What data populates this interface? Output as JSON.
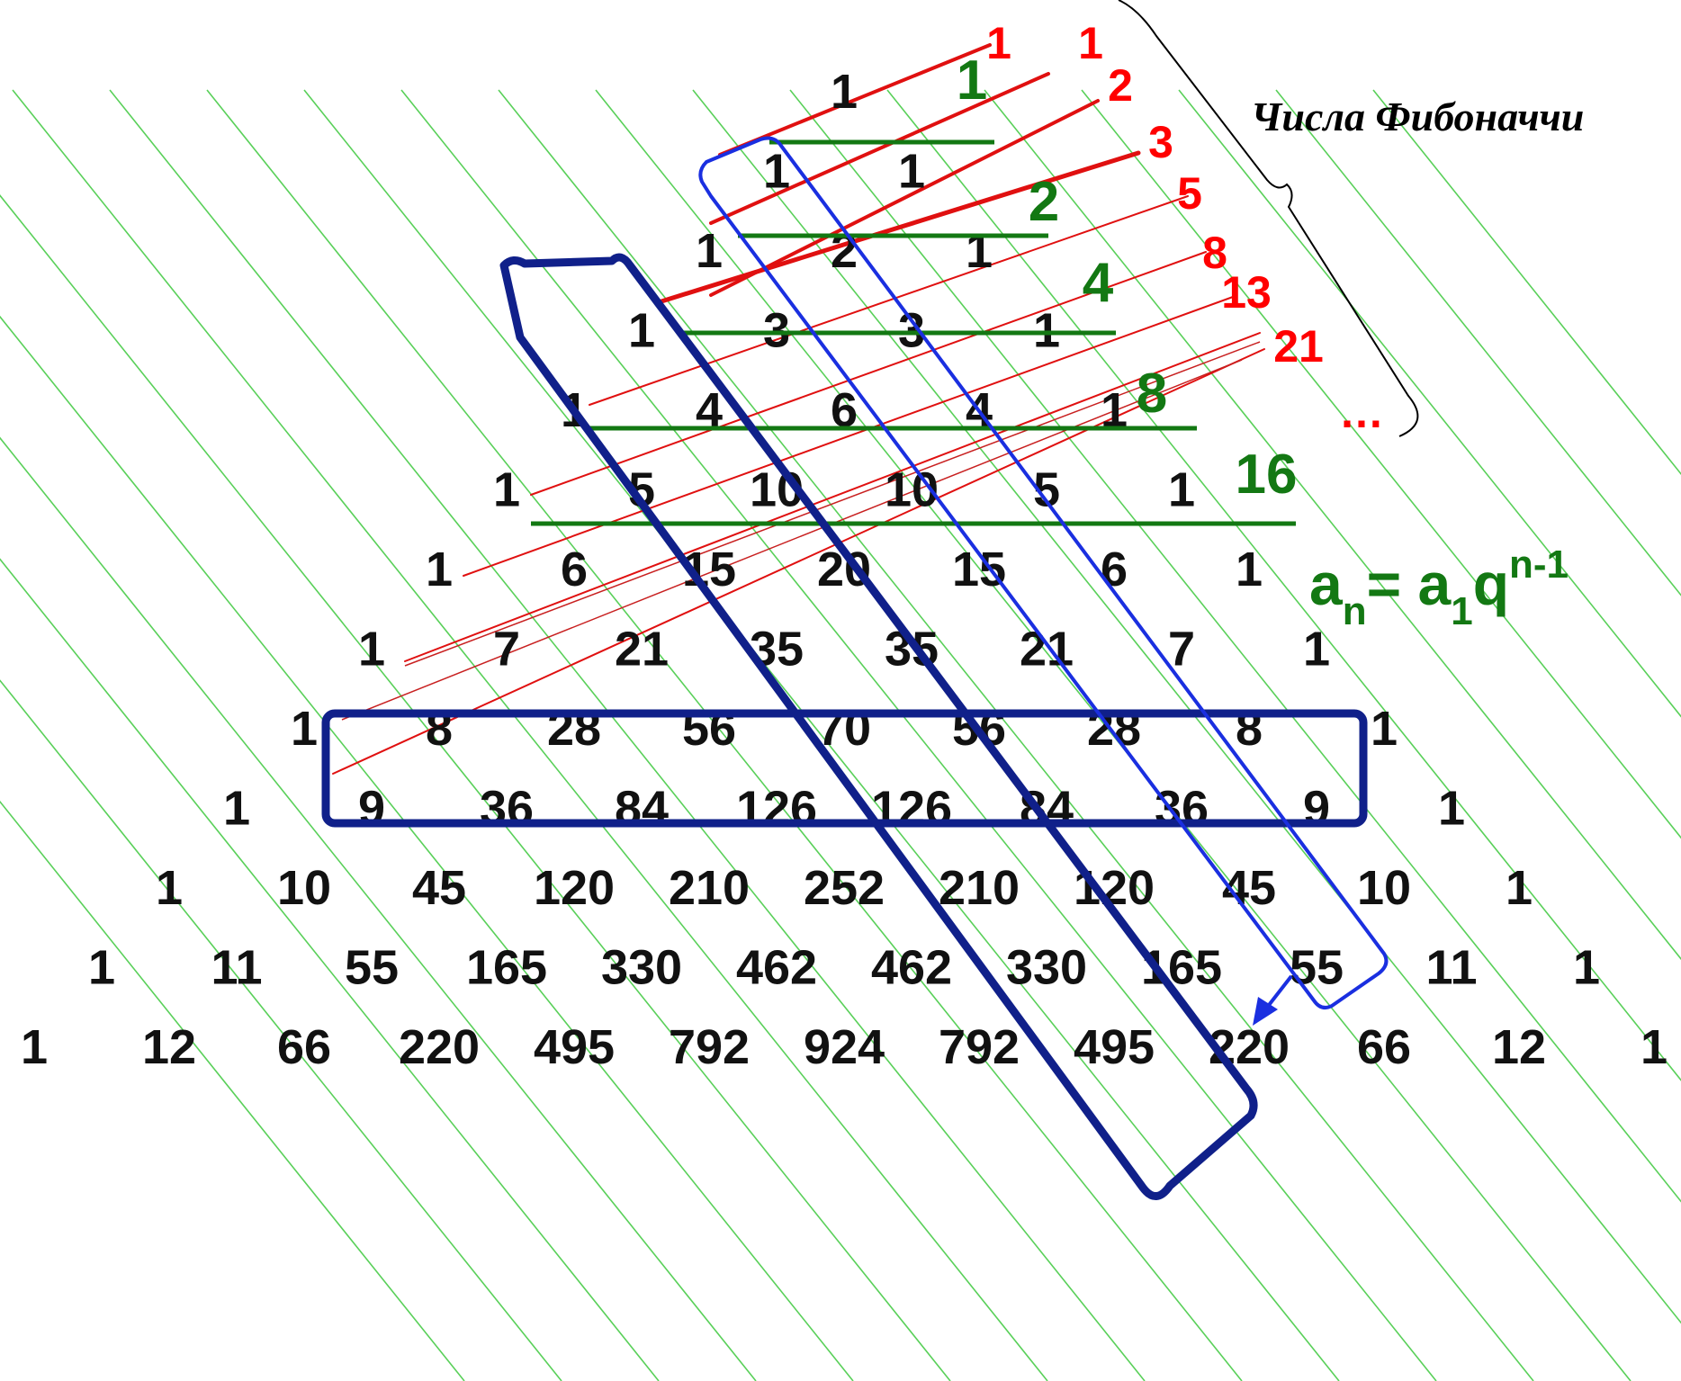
{
  "title": "Числа Фибоначчи",
  "formula": {
    "a": "a",
    "n": "n",
    "eq": "= a",
    "one": "1",
    "q": "q",
    "exp": "n-1"
  },
  "ellipsis": "…",
  "triangle_rows": [
    [
      "1"
    ],
    [
      "1",
      "1"
    ],
    [
      "1",
      "2",
      "1"
    ],
    [
      "1",
      "3",
      "3",
      "1"
    ],
    [
      "1",
      "4",
      "6",
      "4",
      "1"
    ],
    [
      "1",
      "5",
      "10",
      "10",
      "5",
      "1"
    ],
    [
      "1",
      "6",
      "15",
      "20",
      "15",
      "6",
      "1"
    ],
    [
      "1",
      "7",
      "21",
      "35",
      "35",
      "21",
      "7",
      "1"
    ],
    [
      "1",
      "8",
      "28",
      "56",
      "70",
      "56",
      "28",
      "8",
      "1"
    ],
    [
      "1",
      "9",
      "36",
      "84",
      "126",
      "126",
      "84",
      "36",
      "9",
      "1"
    ],
    [
      "1",
      "10",
      "45",
      "120",
      "210",
      "252",
      "210",
      "120",
      "45",
      "10",
      "1"
    ],
    [
      "1",
      "11",
      "55",
      "165",
      "330",
      "462",
      "462",
      "330",
      "165",
      "55",
      "11",
      "1"
    ],
    [
      "1",
      "12",
      "66",
      "220",
      "495",
      "792",
      "924",
      "792",
      "495",
      "220",
      "66",
      "12",
      "1"
    ]
  ],
  "fibonacci_labels": [
    "1",
    "1",
    "2",
    "3",
    "5",
    "8",
    "13",
    "21"
  ],
  "row_sum_labels": [
    "1",
    "2",
    "4",
    "8",
    "16"
  ],
  "colors": {
    "numbers": "#111111",
    "fibonacci": "#ff0000",
    "row_sums": "#137813",
    "diagonals": "#3cc83c",
    "box_dark": "#10208a",
    "box_blue": "#1a2fe0"
  }
}
